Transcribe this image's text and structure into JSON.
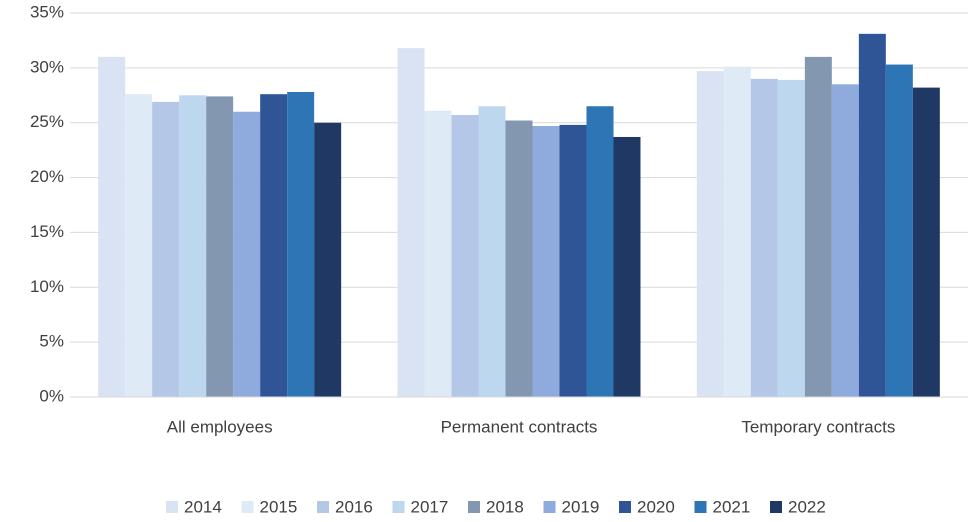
{
  "chart_data": {
    "type": "bar",
    "categories": [
      "All  employees",
      "Permanent contracts",
      "Temporary contracts"
    ],
    "series": [
      {
        "name": "2014",
        "color": "#dae3f3",
        "values": [
          31.0,
          31.8,
          29.7
        ]
      },
      {
        "name": "2015",
        "color": "#deebf7",
        "values": [
          27.6,
          26.1,
          30.1
        ]
      },
      {
        "name": "2016",
        "color": "#b4c7e7",
        "values": [
          26.9,
          25.7,
          29.0
        ]
      },
      {
        "name": "2017",
        "color": "#bdd7ee",
        "values": [
          27.5,
          26.5,
          28.9
        ]
      },
      {
        "name": "2018",
        "color": "#8497b0",
        "values": [
          27.4,
          25.2,
          31.0
        ]
      },
      {
        "name": "2019",
        "color": "#8faadc",
        "values": [
          26.0,
          24.7,
          28.5
        ]
      },
      {
        "name": "2020",
        "color": "#2f5597",
        "values": [
          27.6,
          24.8,
          33.1
        ]
      },
      {
        "name": "2021",
        "color": "#2e75b6",
        "values": [
          27.8,
          26.5,
          30.3
        ]
      },
      {
        "name": "2022",
        "color": "#1f3864",
        "values": [
          25.0,
          23.7,
          28.2
        ]
      }
    ],
    "ylim": [
      0,
      35
    ],
    "yticks": [
      {
        "value": 0,
        "label": "0%"
      },
      {
        "value": 5,
        "label": "5%"
      },
      {
        "value": 10,
        "label": "10%"
      },
      {
        "value": 15,
        "label": "15%"
      },
      {
        "value": 20,
        "label": "20%"
      },
      {
        "value": 25,
        "label": "25%"
      },
      {
        "value": 30,
        "label": "30%"
      },
      {
        "value": 35,
        "label": "35%"
      }
    ],
    "grid": true,
    "legend": "bottom"
  }
}
